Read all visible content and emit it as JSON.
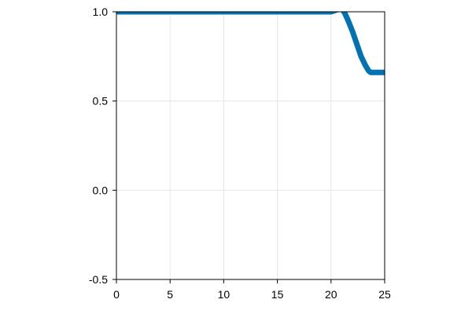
{
  "chart_data": {
    "type": "line",
    "title": "",
    "xlabel": "",
    "ylabel": "",
    "xlim": [
      0,
      25
    ],
    "ylim": [
      -0.5,
      1.0
    ],
    "x_ticks": [
      0,
      5,
      10,
      15,
      20,
      25
    ],
    "x_tick_labels": [
      "0",
      "5",
      "10",
      "15",
      "20",
      "25"
    ],
    "y_ticks": [
      -0.5,
      0.0,
      0.5,
      1.0
    ],
    "y_tick_labels": [
      "-0.5",
      "0.0",
      "0.5",
      "1.0"
    ],
    "grid": true,
    "legend": "none",
    "series": [
      {
        "color": "#0072b2",
        "x": [
          0,
          5,
          10,
          15,
          20,
          21.0,
          21.3,
          21.6,
          22.0,
          22.4,
          22.8,
          23.2,
          23.5,
          23.7,
          24.0,
          24.5,
          25.0
        ],
        "y": [
          1.0,
          1.0,
          1.0,
          1.0,
          1.0,
          1.02,
          0.99,
          0.95,
          0.89,
          0.82,
          0.75,
          0.7,
          0.67,
          0.66,
          0.66,
          0.66,
          0.66
        ]
      }
    ],
    "colors": {
      "series": "#0072b2",
      "grid": "#e6e6e6",
      "axis": "#000000",
      "background": "#ffffff"
    }
  }
}
